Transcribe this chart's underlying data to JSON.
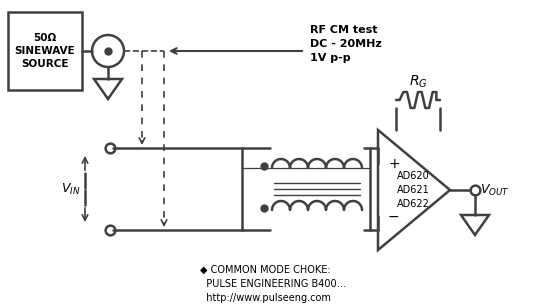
{
  "bg_color": "#ffffff",
  "line_color": "#404040",
  "text_color": "#000000",
  "fig_width": 5.5,
  "fig_height": 3.04,
  "dpi": 100,
  "lw": 1.8,
  "source_box_label": "50Ω\nSINEWAVE\nSOURCE",
  "rf_label": "RF CM test\nDC - 20MHz\n1V p-p",
  "ad_labels": "AD620\nAD621\nAD622",
  "bottom_text": "◆ COMMON MODE CHOKE:\n  PULSE ENGINEERING B400…\n  http://www.pulseeng.com",
  "vin_label": "V_{IN}",
  "vout_label": "V_{OUT}",
  "rg_label": "R_G"
}
